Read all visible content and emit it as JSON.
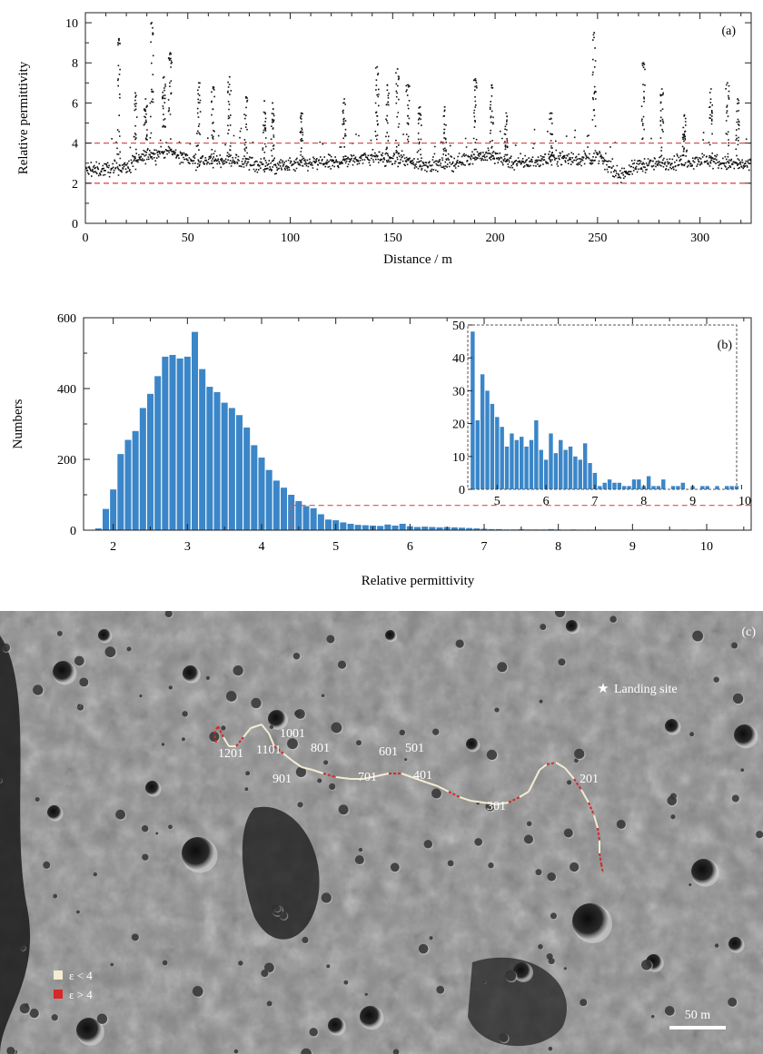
{
  "panel_a": {
    "label": "(a)",
    "xlabel": "Distance / m",
    "ylabel": "Relative permittivity"
  },
  "panel_b": {
    "label": "(b)",
    "xlabel": "Relative permittivity",
    "ylabel": "Numbers"
  },
  "panel_c": {
    "label": "(c)",
    "landing_label": "Landing site",
    "scale_label": "50 m",
    "legend": [
      {
        "label": "ε < 4",
        "color": "#f3ecd2"
      },
      {
        "label": "ε > 4",
        "color": "#d62828"
      }
    ],
    "track_labels": [
      "1201",
      "1001",
      "1101",
      "801",
      "901",
      "701",
      "601",
      "501",
      "401",
      "301",
      "201"
    ]
  },
  "colors": {
    "bar": "#3b86c8",
    "threshold": "#d9534f",
    "points": "#111111"
  },
  "chart_data": [
    {
      "type": "scatter",
      "x_range": [
        0,
        325
      ],
      "xlim": [
        0,
        325
      ],
      "ylim": [
        0,
        10.5
      ],
      "x_ticks": [
        0,
        50,
        100,
        150,
        200,
        250,
        300
      ],
      "y_ticks": [
        0,
        2,
        4,
        6,
        8,
        10
      ],
      "thresholds": [
        2,
        4
      ],
      "baseline_profile": {
        "x": [
          0,
          10,
          20,
          30,
          40,
          50,
          60,
          70,
          80,
          90,
          100,
          110,
          120,
          130,
          140,
          150,
          160,
          170,
          180,
          190,
          200,
          210,
          220,
          230,
          240,
          250,
          260,
          270,
          280,
          290,
          300,
          310,
          320,
          325
        ],
        "y": [
          2.6,
          2.7,
          2.8,
          3.4,
          3.6,
          3.2,
          3.1,
          3.2,
          3.0,
          2.8,
          2.9,
          3.0,
          3.0,
          3.2,
          3.3,
          3.2,
          3.0,
          2.9,
          3.0,
          3.4,
          3.3,
          3.0,
          3.1,
          3.3,
          3.2,
          3.3,
          2.4,
          2.9,
          3.0,
          3.0,
          3.2,
          3.0,
          2.9,
          2.9
        ],
        "spread": 0.5
      },
      "spikes": [
        {
          "x": 16,
          "y": 9.2
        },
        {
          "x": 24,
          "y": 6.5
        },
        {
          "x": 29,
          "y": 6.2
        },
        {
          "x": 32,
          "y": 10.0
        },
        {
          "x": 38,
          "y": 7.3
        },
        {
          "x": 41,
          "y": 8.5
        },
        {
          "x": 55,
          "y": 7.0
        },
        {
          "x": 62,
          "y": 6.8
        },
        {
          "x": 70,
          "y": 7.3
        },
        {
          "x": 78,
          "y": 6.3
        },
        {
          "x": 87,
          "y": 6.1
        },
        {
          "x": 91,
          "y": 6.0
        },
        {
          "x": 105,
          "y": 5.5
        },
        {
          "x": 126,
          "y": 6.2
        },
        {
          "x": 142,
          "y": 7.8
        },
        {
          "x": 147,
          "y": 6.9
        },
        {
          "x": 152,
          "y": 7.7
        },
        {
          "x": 157,
          "y": 6.9
        },
        {
          "x": 163,
          "y": 5.8
        },
        {
          "x": 175,
          "y": 5.8
        },
        {
          "x": 190,
          "y": 7.2
        },
        {
          "x": 198,
          "y": 6.9
        },
        {
          "x": 205,
          "y": 5.5
        },
        {
          "x": 227,
          "y": 5.5
        },
        {
          "x": 248,
          "y": 9.5
        },
        {
          "x": 272,
          "y": 8.0
        },
        {
          "x": 281,
          "y": 6.7
        },
        {
          "x": 292,
          "y": 5.4
        },
        {
          "x": 305,
          "y": 6.7
        },
        {
          "x": 313,
          "y": 7.0
        },
        {
          "x": 318,
          "y": 6.2
        }
      ]
    },
    {
      "type": "bar",
      "bin_width": 0.1,
      "x": [
        1.8,
        1.9,
        2.0,
        2.1,
        2.2,
        2.3,
        2.4,
        2.5,
        2.6,
        2.7,
        2.8,
        2.9,
        3.0,
        3.1,
        3.2,
        3.3,
        3.4,
        3.5,
        3.6,
        3.7,
        3.8,
        3.9,
        4.0,
        4.1,
        4.2,
        4.3,
        4.4,
        4.5,
        4.6,
        4.7,
        4.8,
        4.9,
        5.0,
        5.1,
        5.2,
        5.3,
        5.4,
        5.5,
        5.6,
        5.7,
        5.8,
        5.9,
        6.0,
        6.1,
        6.2,
        6.3,
        6.4,
        6.5,
        6.6,
        6.7,
        6.8,
        6.9,
        7.0,
        7.1,
        7.2,
        7.3,
        7.4,
        7.5,
        7.6,
        7.7,
        7.8,
        7.9,
        8.0,
        8.1,
        8.2,
        8.3,
        8.4,
        8.5,
        8.6,
        8.7,
        8.8,
        8.9,
        9.0,
        9.1,
        9.2,
        9.3,
        9.4,
        9.5,
        9.6,
        9.7,
        9.8,
        9.9,
        10.0
      ],
      "values": [
        5,
        60,
        115,
        215,
        255,
        280,
        345,
        385,
        435,
        490,
        495,
        485,
        490,
        560,
        455,
        405,
        390,
        360,
        345,
        325,
        290,
        240,
        205,
        170,
        140,
        120,
        100,
        82,
        68,
        62,
        45,
        30,
        28,
        22,
        18,
        15,
        14,
        13,
        12,
        16,
        13,
        18,
        11,
        9,
        10,
        9,
        8,
        9,
        8,
        7,
        6,
        5,
        4,
        3,
        3,
        2,
        2,
        3,
        2,
        2,
        2,
        3,
        2,
        1,
        2,
        1,
        1,
        1,
        1,
        1,
        1,
        1,
        1,
        1,
        1,
        1,
        1,
        1,
        0,
        1,
        0,
        1,
        1
      ],
      "xlim": [
        1.6,
        10.6
      ],
      "ylim": [
        0,
        600
      ],
      "x_ticks": [
        2,
        3,
        4,
        5,
        6,
        7,
        8,
        9,
        10
      ],
      "y_ticks": [
        0,
        200,
        400,
        600
      ],
      "zoom_box": {
        "x": [
          4.4,
          10.6
        ],
        "y": [
          0,
          70
        ]
      }
    },
    {
      "type": "bar",
      "bin_width": 0.1,
      "x": [
        4.5,
        4.6,
        4.7,
        4.8,
        4.9,
        5.0,
        5.1,
        5.2,
        5.3,
        5.4,
        5.5,
        5.6,
        5.7,
        5.8,
        5.9,
        6.0,
        6.1,
        6.2,
        6.3,
        6.4,
        6.5,
        6.6,
        6.7,
        6.8,
        6.9,
        7.0,
        7.1,
        7.2,
        7.3,
        7.4,
        7.5,
        7.6,
        7.7,
        7.8,
        7.9,
        8.0,
        8.1,
        8.2,
        8.3,
        8.4,
        8.5,
        8.6,
        8.7,
        8.8,
        8.9,
        9.0,
        9.1,
        9.2,
        9.3,
        9.4,
        9.5,
        9.6,
        9.7,
        9.8,
        9.9
      ],
      "values": [
        48,
        21,
        35,
        30,
        26,
        22,
        19,
        13,
        17,
        15,
        16,
        13,
        15,
        21,
        12,
        9,
        17,
        11,
        15,
        12,
        13,
        10,
        9,
        14,
        8,
        5,
        1,
        2,
        3,
        2,
        2,
        1,
        1,
        3,
        3,
        1,
        4,
        1,
        1,
        3,
        0,
        1,
        1,
        2,
        0,
        1,
        0,
        1,
        1,
        0,
        1,
        0,
        1,
        1,
        1
      ],
      "xlim": [
        4.4,
        9.9
      ],
      "ylim": [
        0,
        50
      ],
      "x_ticks": [
        5,
        6,
        7,
        8,
        9,
        10
      ],
      "y_ticks": [
        0,
        10,
        20,
        30,
        40,
        50
      ]
    }
  ]
}
